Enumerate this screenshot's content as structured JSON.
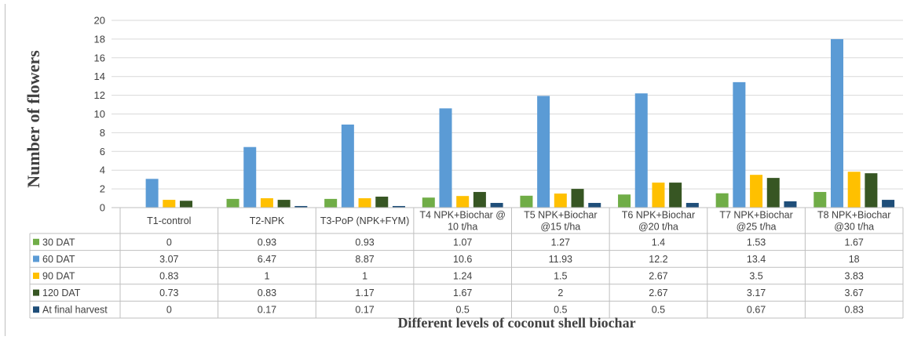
{
  "chart_data": {
    "type": "bar",
    "ylabel": "Number of flowers",
    "xlabel": "Different levels of coconut shell biochar",
    "ylim": [
      0,
      20
    ],
    "yticks": [
      0,
      2,
      4,
      6,
      8,
      10,
      12,
      14,
      16,
      18,
      20
    ],
    "grid": true,
    "legend": "data-table",
    "categories": [
      [
        "T1-control"
      ],
      [
        "T2-NPK"
      ],
      [
        "T3-PoP (NPK+FYM)"
      ],
      [
        "T4 NPK+Biochar @",
        "10 t/ha"
      ],
      [
        "T5 NPK+Biochar",
        "@15 t/ha"
      ],
      [
        "T6 NPK+Biochar",
        "@20 t/ha"
      ],
      [
        "T7 NPK+Biochar",
        "@25 t/ha"
      ],
      [
        "T8 NPK+Biochar",
        "@30 t/ha"
      ]
    ],
    "series": [
      {
        "name": "30 DAT",
        "color": "#70ad47",
        "values": [
          0,
          0.93,
          0.93,
          1.07,
          1.27,
          1.4,
          1.53,
          1.67
        ]
      },
      {
        "name": "60 DAT",
        "color": "#5b9bd5",
        "values": [
          3.07,
          6.47,
          8.87,
          10.6,
          11.93,
          12.2,
          13.4,
          18
        ]
      },
      {
        "name": "90 DAT",
        "color": "#ffc000",
        "values": [
          0.83,
          1,
          1,
          1.24,
          1.5,
          2.67,
          3.5,
          3.83
        ]
      },
      {
        "name": "120 DAT",
        "color": "#375623",
        "values": [
          0.73,
          0.83,
          1.17,
          1.67,
          2,
          2.67,
          3.17,
          3.67
        ]
      },
      {
        "name": "At final harvest",
        "color": "#1f4e79",
        "values": [
          0,
          0.17,
          0.17,
          0.5,
          0.5,
          0.5,
          0.67,
          0.83
        ]
      }
    ]
  }
}
